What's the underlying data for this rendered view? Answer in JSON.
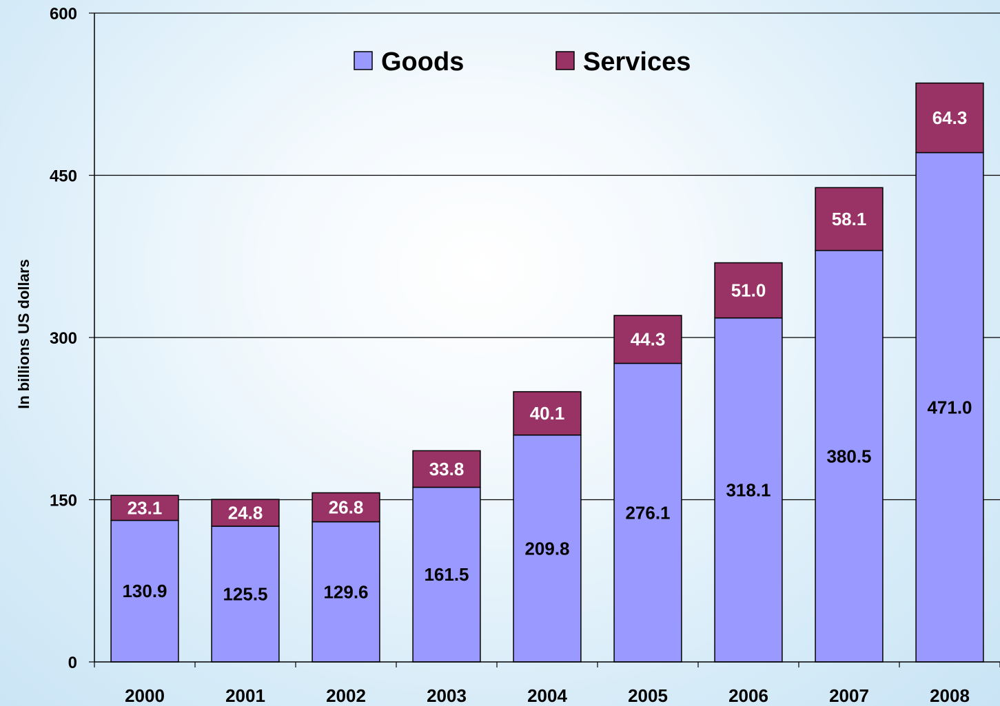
{
  "chart_data": {
    "type": "bar",
    "stacked": true,
    "title": "",
    "xlabel": "",
    "ylabel": "In billions US dollars",
    "ylim": [
      0,
      600
    ],
    "yticks": [
      0,
      150,
      300,
      450,
      600
    ],
    "grid": true,
    "legend_position": "top-center",
    "categories": [
      "2000",
      "2001",
      "2002",
      "2003",
      "2004",
      "2005",
      "2006",
      "2007",
      "2008"
    ],
    "series": [
      {
        "name": "Goods",
        "color": "#9999ff",
        "values": [
          130.9,
          125.5,
          129.6,
          161.5,
          209.8,
          276.1,
          318.1,
          380.5,
          471.0
        ],
        "labels": [
          "130.9",
          "125.5",
          "129.6",
          "161.5",
          "209.8",
          "276.1",
          "318.1",
          "380.5",
          "471.0"
        ]
      },
      {
        "name": "Services",
        "color": "#993366",
        "values": [
          23.1,
          24.8,
          26.8,
          33.8,
          40.1,
          44.3,
          51.0,
          58.1,
          64.3
        ],
        "labels": [
          "23.1",
          "24.8",
          "26.8",
          "33.8",
          "40.1",
          "44.3",
          "51.0",
          "58.1",
          "64.3"
        ]
      }
    ]
  }
}
